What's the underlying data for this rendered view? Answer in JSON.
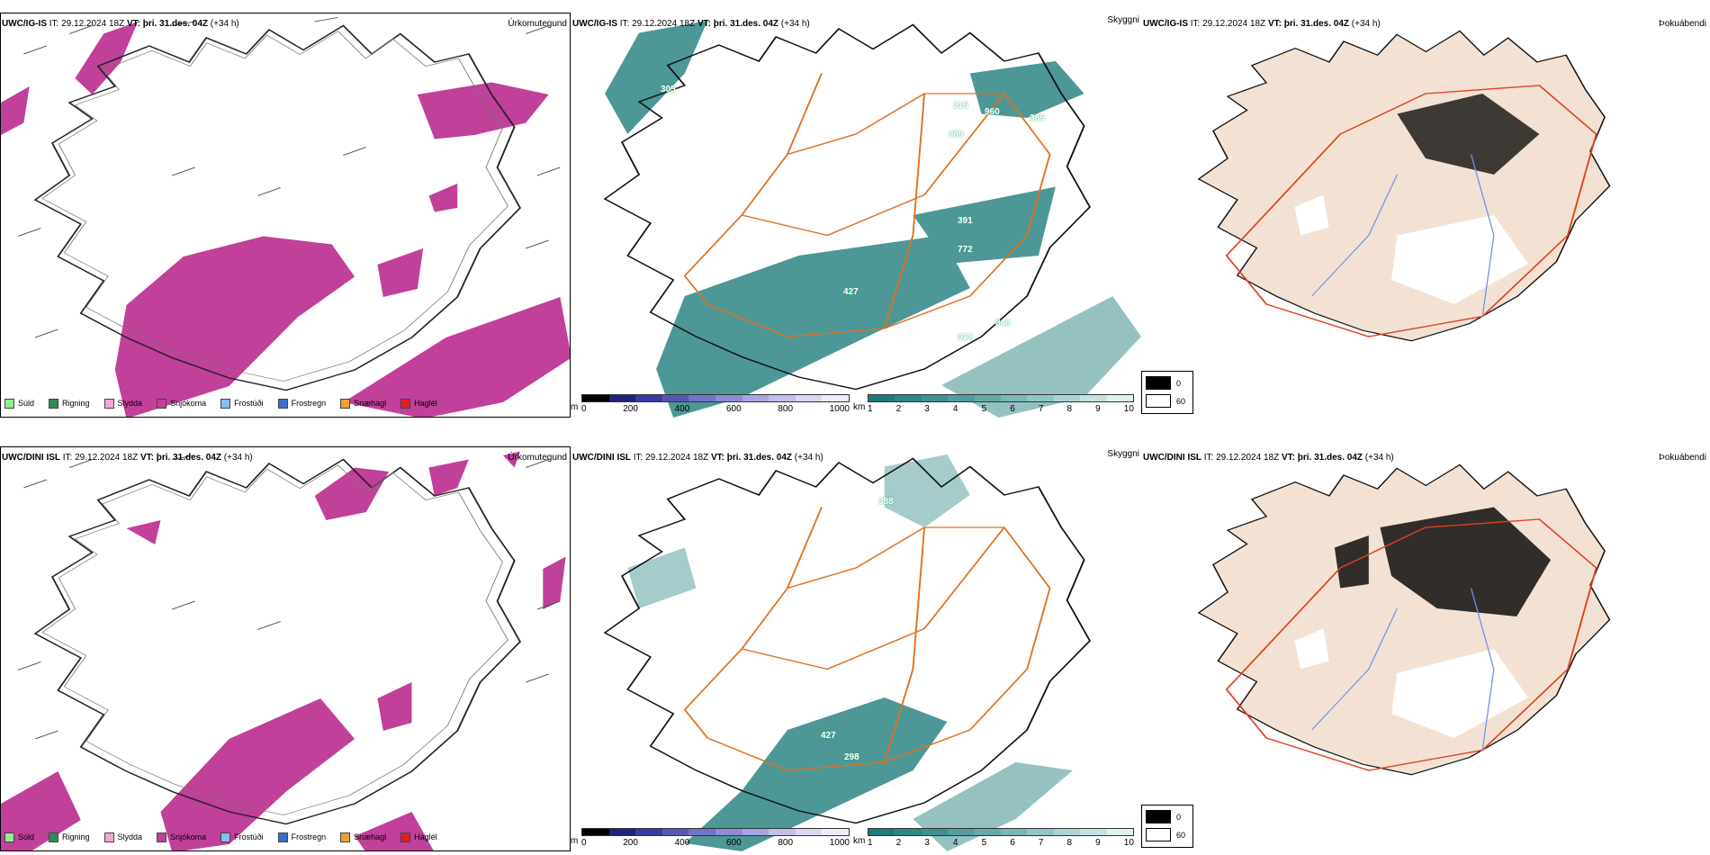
{
  "rows": [
    {
      "model": "UWC/IG-IS",
      "it_label": "IT:",
      "it_value": "29.12.2024 18Z",
      "vt_label": "VT:",
      "vt_value": "þri. 31.des. 04Z",
      "lead": "(+34 h)"
    },
    {
      "model": "UWC/DINI ISL",
      "it_label": "IT:",
      "it_value": "29.12.2024 18Z",
      "vt_label": "VT:",
      "vt_value": "þri. 31.des. 04Z",
      "lead": "(+34 h)"
    }
  ],
  "titles": {
    "precip": "Úrkomutegund",
    "visibility": "Skyggni",
    "cloud": "Þokuábendi"
  },
  "precip_legend": [
    {
      "label": "Súld",
      "color": "#90ee90"
    },
    {
      "label": "Rigning",
      "color": "#2e8b57"
    },
    {
      "label": "Slydda",
      "color": "#f4a6d7"
    },
    {
      "label": "Snjókoma",
      "color": "#c0409a"
    },
    {
      "label": "Frostúði",
      "color": "#87bff0"
    },
    {
      "label": "Frostregn",
      "color": "#3a6fd0"
    },
    {
      "label": "Snæhagl",
      "color": "#f0a030"
    },
    {
      "label": "Haglél",
      "color": "#e02020"
    }
  ],
  "vis_bar_m": {
    "unit": "m",
    "ticks": [
      "0",
      "200",
      "400",
      "600",
      "800",
      "1000"
    ],
    "colors": [
      "#000000",
      "#202080",
      "#3a3aa0",
      "#5656b8",
      "#7272c8",
      "#8c8cd4",
      "#a6a6e0",
      "#c0c0ec",
      "#d8d8f4",
      "#ececfa"
    ]
  },
  "vis_bar_km": {
    "unit": "km",
    "ticks": [
      "1",
      "2",
      "3",
      "4",
      "5",
      "6",
      "7",
      "8",
      "9",
      "10"
    ],
    "colors": [
      "#207a7a",
      "#2e8686",
      "#3e9292",
      "#509e9e",
      "#64aaaa",
      "#7ab8b8",
      "#92c6c6",
      "#aad4d4",
      "#c4e2e2",
      "#e0f0f0"
    ]
  },
  "cloud_key": {
    "top_value": "0",
    "bottom_value": "60",
    "top_color": "#000000",
    "bottom_color": "#ffffff"
  },
  "vis_values_row0": [
    "305",
    "960",
    "385",
    "391",
    "772",
    "427",
    "848",
    "972",
    "469",
    "216"
  ],
  "vis_values_row1": [
    "388",
    "427",
    "298"
  ],
  "colors": {
    "snow": "#c0409a",
    "vis_teal": "#2e8686",
    "roads": "#e07020",
    "land_tan": "#f3e2d3",
    "rivers": "#6f8fe8"
  }
}
